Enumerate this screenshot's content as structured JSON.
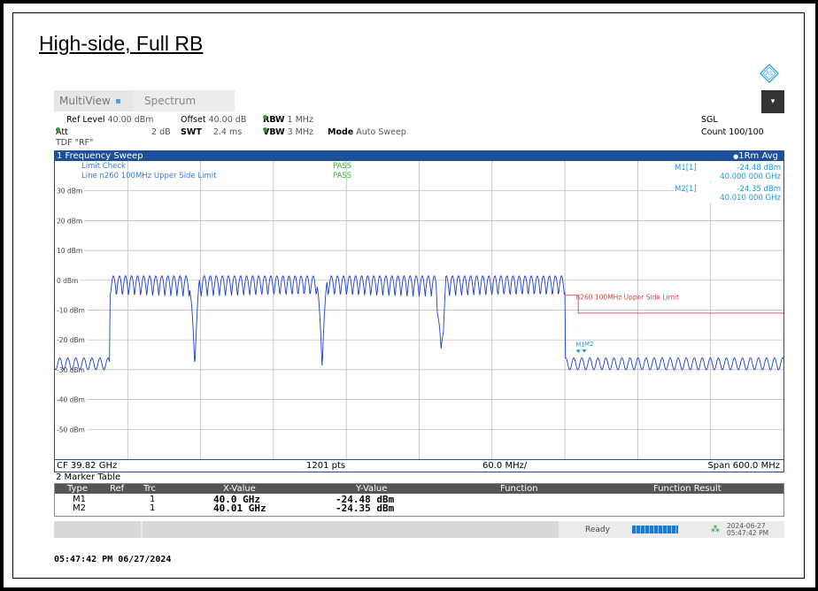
{
  "heading": "High-side, Full RB",
  "tabs": {
    "multiview": "MultiView",
    "spectrum": "Spectrum"
  },
  "menu_icon": "dropdown-arrow",
  "settings": {
    "ref_level_label": "Ref Level",
    "ref_level_value": "40.00 dBm",
    "offset_label": "Offset",
    "offset_value": "40.00 dB",
    "rbw_label": "RBW",
    "rbw_value": "1 MHz",
    "att_label": "Att",
    "att_value": "2 dB",
    "swt_label": "SWT",
    "swt_value": "2.4 ms",
    "vbw_label": "VBW",
    "vbw_value": "3 MHz",
    "mode_label": "Mode",
    "mode_value": "Auto Sweep",
    "tdf": "TDF \"RF\"",
    "sgl": "SGL",
    "count": "Count 100/100"
  },
  "plot": {
    "title": "1 Frequency Sweep",
    "trace_label": "1Rm Avg",
    "limit_check_label": "Limit Check",
    "limit_check_result": "PASS",
    "line_label": "Line n260 100MHz Upper Side Limit",
    "line_result": "PASS",
    "limit_line_label": "n260 100MHz Upper Side Limit",
    "marker_readouts": [
      {
        "name": "M1[1]",
        "level": "-24.48 dBm",
        "freq": "40.000 000 GHz"
      },
      {
        "name": "M2[1]",
        "level": "-24.35 dBm",
        "freq": "40.010 000 GHz"
      }
    ],
    "marker_tags": [
      "M1",
      "M2"
    ],
    "footer": {
      "cf": "CF 39.82 GHz",
      "pts": "1201 pts",
      "div": "60.0 MHz/",
      "span": "Span 600.0 MHz"
    }
  },
  "chart_data": {
    "type": "line",
    "title": "1 Frequency Sweep",
    "y_ticks": [
      "30 dBm",
      "20 dBm",
      "10 dBm",
      "0 dBm",
      "-10 dBm",
      "-20 dBm",
      "-30 dBm",
      "-40 dBm",
      "-50 dBm"
    ],
    "ylim": [
      -60,
      40
    ],
    "xlim_mhz_rel_cf": [
      -300,
      300
    ],
    "grid": true,
    "series": [
      {
        "name": "1Rm Avg",
        "color": "#1a3fd1",
        "segments": [
          {
            "from": -300,
            "to": -255,
            "level": -28,
            "ripple": 2
          },
          {
            "from": -255,
            "to": -175,
            "level": -1,
            "ripple": 5,
            "notch_at": -185
          },
          {
            "from": -175,
            "to": -75,
            "level": -1,
            "ripple": 5,
            "notch_at": -80
          },
          {
            "from": -75,
            "to": 25,
            "level": -1,
            "ripple": 5,
            "notch_at": 18
          },
          {
            "from": 25,
            "to": 120,
            "level": -1,
            "ripple": 5
          },
          {
            "from": 120,
            "to": 300,
            "level": -28,
            "ripple": 2
          }
        ]
      },
      {
        "name": "n260 100MHz Upper Side Limit",
        "color": "#e04040",
        "points": [
          [
            120,
            -5
          ],
          [
            131,
            -5
          ],
          [
            131,
            -11
          ],
          [
            300,
            -11
          ]
        ]
      }
    ],
    "markers": [
      {
        "name": "M1",
        "x_ghz": 40.0,
        "y_dbm": -24.48
      },
      {
        "name": "M2",
        "x_ghz": 40.01,
        "y_dbm": -24.35
      }
    ]
  },
  "marker_table": {
    "title": "2 Marker Table",
    "headers": [
      "Type",
      "Ref",
      "Trc",
      "X-Value",
      "Y-Value",
      "Function",
      "Function Result"
    ],
    "rows": [
      {
        "type": "M1",
        "ref": "",
        "trc": "1",
        "x": "40.0 GHz",
        "y": "-24.48 dBm",
        "func": "",
        "result": ""
      },
      {
        "type": "M2",
        "ref": "",
        "trc": "1",
        "x": "40.01 GHz",
        "y": "-24.35 dBm",
        "func": "",
        "result": ""
      }
    ]
  },
  "status": {
    "ready": "Ready",
    "date": "2024-06-27",
    "time": "05:47:42 PM"
  },
  "timestamp": "05:47:42 PM  06/27/2024",
  "colors": {
    "accent": "#1d4f9a",
    "trace": "#1a3fd1",
    "limit": "#e04040",
    "pass": "#2db82d",
    "marker": "#1a9ad8"
  }
}
